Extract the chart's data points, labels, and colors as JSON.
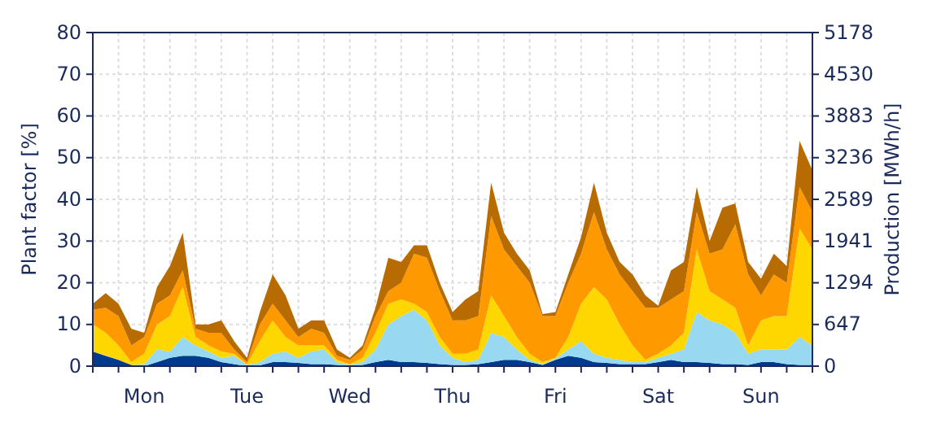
{
  "chart_data": {
    "type": "area",
    "stacked": true,
    "ylabel": "Plant factor [%]",
    "y2label": "Production [MWh/h]",
    "categories": [
      null,
      null,
      null,
      null,
      "Mon",
      null,
      null,
      null,
      null,
      null,
      null,
      null,
      "Tue",
      null,
      null,
      null,
      null,
      null,
      null,
      null,
      "Wed",
      null,
      null,
      null,
      null,
      null,
      null,
      null,
      "Thu",
      null,
      null,
      null,
      null,
      null,
      null,
      null,
      "Fri",
      null,
      null,
      null,
      null,
      null,
      null,
      null,
      "Sat",
      null,
      null,
      null,
      null,
      null,
      null,
      null,
      "Sun",
      null,
      null,
      null,
      null
    ],
    "ylim": [
      0,
      80
    ],
    "yticks": [
      0,
      10,
      20,
      30,
      40,
      50,
      60,
      70,
      80
    ],
    "y2lim": [
      0,
      5178
    ],
    "y2ticks": [
      0,
      647,
      1294,
      1941,
      2589,
      3236,
      3883,
      4530,
      5178
    ],
    "grid": true,
    "series": [
      {
        "color": "#003a8c",
        "values": [
          3.5,
          2.5,
          1.5,
          0.3,
          0,
          1,
          2,
          2.5,
          2.5,
          2,
          1,
          0.5,
          0,
          0.2,
          1,
          1,
          0.8,
          0.5,
          0.5,
          0.3,
          0,
          0.3,
          1,
          1.5,
          1,
          1,
          0.8,
          0.5,
          0.3,
          0.3,
          0.5,
          1,
          1.5,
          1.5,
          1,
          0.3,
          1.5,
          2.5,
          2,
          1,
          0.8,
          0.5,
          0.5,
          0.5,
          1,
          1.5,
          1,
          1,
          0.8,
          0.5,
          0.5,
          0.3,
          1,
          1,
          0.5,
          0.3,
          0.3
        ]
      },
      {
        "color": "#98d8f0",
        "values": [
          0,
          0.1,
          0,
          0,
          0.5,
          3,
          1.5,
          4.5,
          2.5,
          1.5,
          1,
          2,
          0.3,
          0.8,
          2,
          2.5,
          1.2,
          3,
          3.5,
          0.7,
          0.3,
          0.7,
          3,
          8.5,
          11,
          12.5,
          10.2,
          4.5,
          1.7,
          0.7,
          1,
          7,
          5.5,
          2.5,
          0.5,
          0.2,
          0.3,
          1.5,
          4,
          2,
          1.2,
          1,
          0.5,
          0.5,
          1,
          1.5,
          3,
          12,
          10.2,
          9.5,
          7.5,
          2.7,
          3,
          3,
          3.5,
          6.7,
          4.7
        ]
      },
      {
        "color": "#ffd700",
        "values": [
          6.5,
          5.4,
          3.5,
          0.7,
          2.5,
          6,
          8.5,
          12,
          2,
          1.5,
          1.5,
          0.5,
          0.2,
          5,
          8,
          3.5,
          3,
          1.5,
          1,
          0.5,
          0.2,
          1,
          4,
          5,
          4,
          1.5,
          2,
          2,
          1,
          2,
          2.5,
          9,
          5,
          3,
          1.5,
          0.5,
          0.2,
          3,
          9,
          16,
          14,
          8.5,
          4,
          0.5,
          1,
          2,
          4,
          15,
          7,
          6,
          6,
          2,
          7,
          8,
          8,
          26,
          23
        ]
      },
      {
        "color": "#ff9900",
        "values": [
          3.5,
          6,
          7,
          4,
          4,
          5,
          5,
          4,
          2,
          3,
          4.5,
          1,
          0.5,
          4,
          4,
          4,
          2,
          4,
          3,
          1,
          1,
          2,
          4,
          3,
          4,
          12,
          13,
          11,
          8,
          8,
          8,
          19,
          16,
          17,
          17,
          11,
          10,
          13,
          12,
          18,
          12,
          12,
          13,
          12.5,
          11,
          11,
          10,
          9,
          9,
          12,
          20,
          17,
          6,
          10,
          8,
          10,
          9
        ]
      },
      {
        "color": "#b86b00",
        "values": [
          1.5,
          3.5,
          3,
          4,
          1,
          4,
          7,
          9,
          1,
          2,
          3,
          2,
          1,
          3,
          7,
          6,
          2,
          2,
          3,
          1.5,
          0.5,
          1,
          2,
          8,
          5,
          2,
          3,
          2,
          2,
          5,
          6,
          8,
          4,
          3,
          3,
          0.5,
          1,
          2,
          4,
          7,
          4,
          3,
          4,
          3,
          0.5,
          7,
          7,
          6,
          3,
          10,
          5,
          3,
          4,
          5,
          4,
          11,
          10
        ]
      }
    ]
  }
}
